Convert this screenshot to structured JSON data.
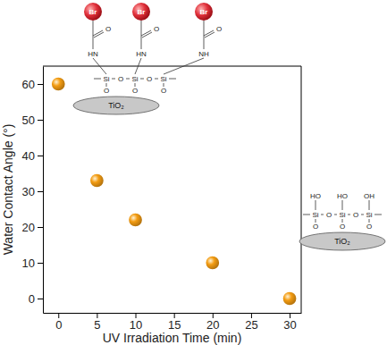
{
  "chart_data": {
    "type": "scatter",
    "x_label": "UV Irradiation Time (min)",
    "y_label": "Water Contact Angle (°)",
    "x": [
      0,
      5,
      10,
      20,
      30
    ],
    "values": [
      60,
      33,
      22,
      10,
      0
    ],
    "color": "#f39c12",
    "marker": "circle",
    "xlim": [
      -2,
      31.5
    ],
    "xticks": [
      0,
      5,
      10,
      15,
      20,
      25,
      30
    ],
    "ylim": [
      -4,
      65
    ],
    "yticks": [
      0,
      10,
      20,
      30,
      40,
      50,
      60
    ],
    "grid": false,
    "insets": [
      {
        "groups": [
          "Br",
          "Br",
          "Br"
        ],
        "carbonyls": [
          "O",
          "O",
          "O"
        ],
        "amines": [
          "HN",
          "HN",
          "NH"
        ],
        "siloxane": [
          "Si",
          "O",
          "Si",
          "O",
          "Si"
        ],
        "oxygens": [
          "O",
          "O",
          "O"
        ],
        "particle": "TiO₂"
      },
      {
        "hydroxyls": [
          "HO",
          "HO",
          "OH"
        ],
        "siloxane": [
          "Si",
          "O",
          "Si",
          "O",
          "Si"
        ],
        "oxygens": [
          "O",
          "O",
          "O"
        ],
        "particle": "TiO₂"
      }
    ]
  }
}
